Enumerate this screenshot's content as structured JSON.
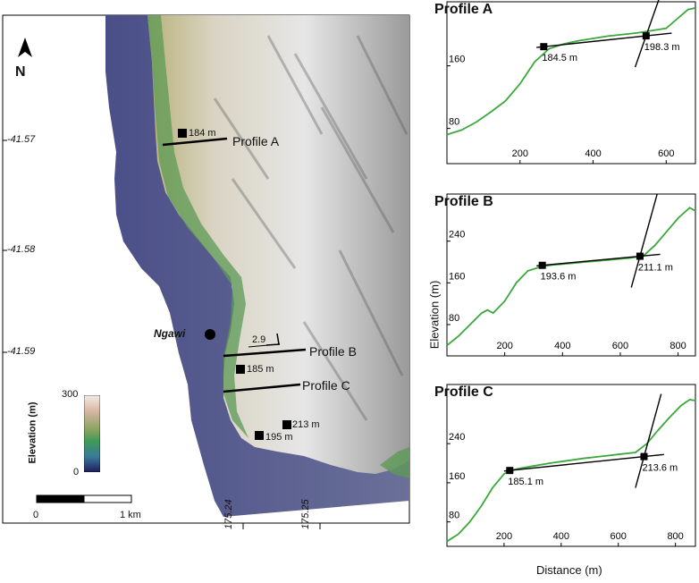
{
  "map": {
    "north_label": "N",
    "latitude_ticks": [
      "-41.57",
      "-41.58",
      "-41.59"
    ],
    "longitude_ticks": [
      "175.24",
      "175.25"
    ],
    "place_label": "Ngawi",
    "profile_line_labels": [
      "Profile A",
      "Profile B",
      "Profile C"
    ],
    "point_labels": [
      "184 m",
      "185 m",
      "195 m",
      "213 m"
    ],
    "dip_label": "2.9",
    "legend": {
      "title": "Elevation (m)",
      "max": "300",
      "min": "0"
    },
    "scale_bar": {
      "left_label": "0",
      "right_label": "1 km"
    },
    "colors": {
      "sea": "#5a5f96",
      "land": "#e0dfdc",
      "profile_line": "#000000"
    }
  },
  "chart_data": [
    {
      "type": "line",
      "title": "Profile A",
      "xlabel": "",
      "ylabel": "",
      "x_ticks": [
        200,
        400,
        600
      ],
      "y_ticks": [
        80,
        160
      ],
      "xlim": [
        0,
        680
      ],
      "ylim": [
        35,
        235
      ],
      "series": [
        {
          "x": [
            0,
            40,
            80,
            120,
            160,
            200,
            240,
            280,
            320,
            360,
            400,
            440,
            480,
            520,
            560,
            600,
            630,
            660,
            680
          ],
          "y": [
            72,
            78,
            88,
            101,
            115,
            137,
            165,
            182,
            188,
            192,
            195,
            198,
            200,
            202,
            205,
            208,
            220,
            232,
            234
          ]
        }
      ],
      "annotations": [
        {
          "x": 265,
          "y": 184.5,
          "label": "184.5 m"
        },
        {
          "x": 545,
          "y": 198.3,
          "label": "198.3 m"
        }
      ],
      "colors": {
        "profile": "#3aa83a"
      }
    },
    {
      "type": "line",
      "title": "Profile B",
      "xlabel": "",
      "ylabel": "Elevation (m)",
      "x_ticks": [
        200,
        400,
        600,
        800
      ],
      "y_ticks": [
        80,
        160,
        240
      ],
      "xlim": [
        0,
        860
      ],
      "ylim": [
        20,
        320
      ],
      "series": [
        {
          "x": [
            0,
            40,
            80,
            120,
            140,
            160,
            200,
            240,
            280,
            320,
            360,
            400,
            440,
            480,
            520,
            560,
            600,
            640,
            680,
            720,
            760,
            800,
            840,
            860
          ],
          "y": [
            40,
            58,
            80,
            102,
            108,
            102,
            125,
            160,
            183,
            190,
            194,
            196,
            198,
            200,
            202,
            204,
            206,
            208,
            212,
            232,
            258,
            284,
            304,
            298
          ]
        }
      ],
      "annotations": [
        {
          "x": 330,
          "y": 193.6,
          "label": "193.6 m"
        },
        {
          "x": 668,
          "y": 211.1,
          "label": "211.1 m"
        }
      ],
      "colors": {
        "profile": "#3aa83a"
      }
    },
    {
      "type": "line",
      "title": "Profile C",
      "xlabel": "Distance (m)",
      "ylabel": "",
      "x_ticks": [
        200,
        400,
        600,
        800
      ],
      "y_ticks": [
        80,
        160,
        240
      ],
      "xlim": [
        0,
        870
      ],
      "ylim": [
        30,
        350
      ],
      "series": [
        {
          "x": [
            0,
            40,
            80,
            120,
            160,
            200,
            220,
            260,
            300,
            360,
            420,
            480,
            540,
            600,
            660,
            700,
            740,
            780,
            820,
            850,
            870
          ],
          "y": [
            40,
            55,
            80,
            112,
            150,
            178,
            185,
            190,
            194,
            200,
            205,
            210,
            214,
            218,
            222,
            240,
            268,
            294,
            318,
            330,
            328
          ]
        }
      ],
      "annotations": [
        {
          "x": 220,
          "y": 185.1,
          "label": "185.1 m"
        },
        {
          "x": 690,
          "y": 213.6,
          "label": "213.6 m"
        }
      ],
      "colors": {
        "profile": "#3aa83a"
      }
    }
  ]
}
